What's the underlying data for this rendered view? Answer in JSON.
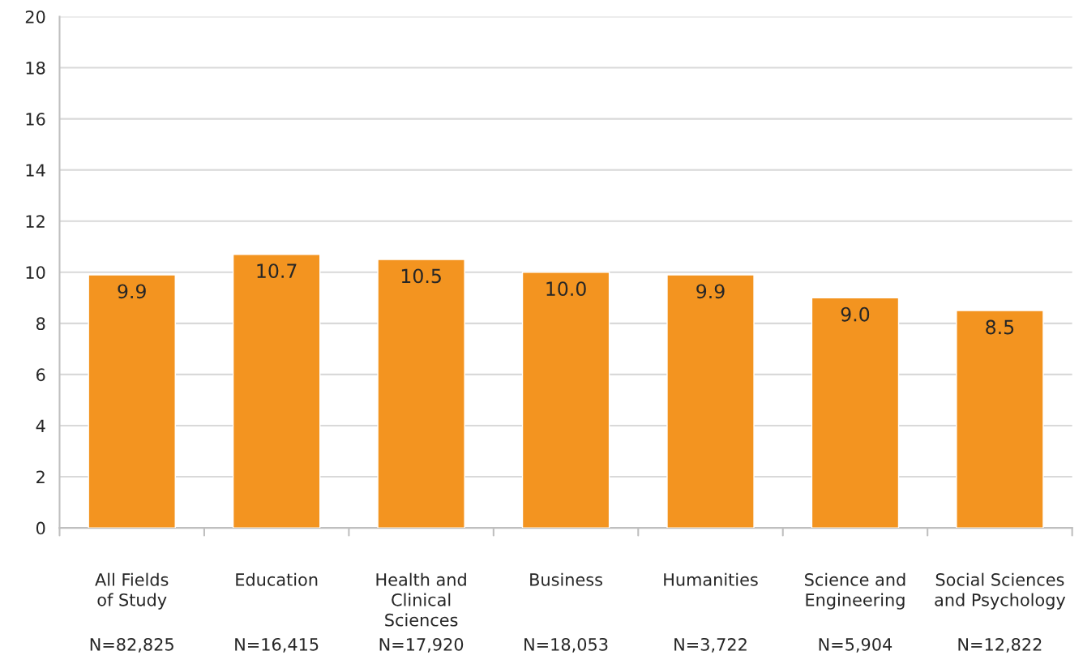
{
  "chart_data": {
    "type": "bar",
    "categories": [
      "All Fields\nof Study",
      "Education",
      "Health and\nClinical\nSciences",
      "Business",
      "Humanities",
      "Science and\nEngineering",
      "Social Sciences\nand Psychology"
    ],
    "values": [
      9.9,
      10.7,
      10.5,
      10.0,
      9.9,
      9.0,
      8.5
    ],
    "color": "#f39420",
    "ylim": [
      0,
      20
    ],
    "yticks": [
      0,
      2,
      4,
      6,
      8,
      10,
      12,
      14,
      16,
      18,
      20
    ],
    "grid": "y",
    "value_labels": [
      "9.9",
      "10.7",
      "10.5",
      "10.0",
      "9.9",
      "9.0",
      "8.5"
    ],
    "annotations": [
      "N=82,825",
      "N=16,415",
      "N=17,920",
      "N=18,053",
      "N=3,722",
      "N=5,904",
      "N=12,822"
    ]
  }
}
